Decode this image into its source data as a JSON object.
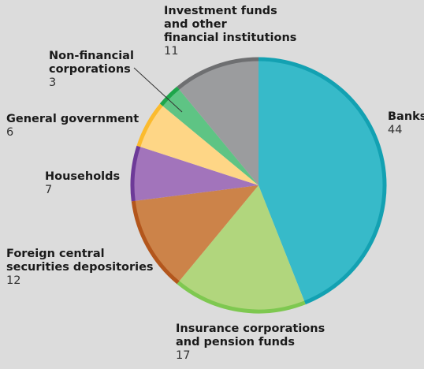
{
  "chart_data": {
    "type": "pie",
    "title": "",
    "start_angle_deg": 0,
    "direction": "clockwise",
    "slices": [
      {
        "label": "Banks",
        "value": 44,
        "color": "#37bac9",
        "edge_color": "#13a1b2"
      },
      {
        "label": "Insurance corporations and pension funds",
        "value": 17,
        "color": "#b1d67d",
        "edge_color": "#7ec850"
      },
      {
        "label": "Foreign central securities depositories",
        "value": 12,
        "color": "#cc8349",
        "edge_color": "#b3561c"
      },
      {
        "label": "Households",
        "value": 7,
        "color": "#a274bb",
        "edge_color": "#6d3a98"
      },
      {
        "label": "General government",
        "value": 6,
        "color": "#fed686",
        "edge_color": "#fbbb2e"
      },
      {
        "label": "Non-financial corporations",
        "value": 3,
        "color": "#5ec484",
        "edge_color": "#1da64a"
      },
      {
        "label": "Investment funds and other financial institutions",
        "value": 11,
        "color": "#9b9c9e",
        "edge_color": "#6e6f71"
      }
    ]
  },
  "labels": {
    "banks": {
      "lines": [
        "Banks"
      ],
      "value": "44"
    },
    "insurance": {
      "lines": [
        "Insurance corporations",
        "and pension funds"
      ],
      "value": "17"
    },
    "foreign_csd": {
      "lines": [
        "Foreign central",
        "securities depositories"
      ],
      "value": "12"
    },
    "households": {
      "lines": [
        "Households"
      ],
      "value": "7"
    },
    "general_gov": {
      "lines": [
        "General government"
      ],
      "value": "6"
    },
    "non_fin": {
      "lines": [
        "Non-financial",
        "corporations"
      ],
      "value": "3"
    },
    "inv_funds": {
      "lines": [
        "Investment funds",
        "and other",
        "financial institutions"
      ],
      "value": "11"
    }
  }
}
